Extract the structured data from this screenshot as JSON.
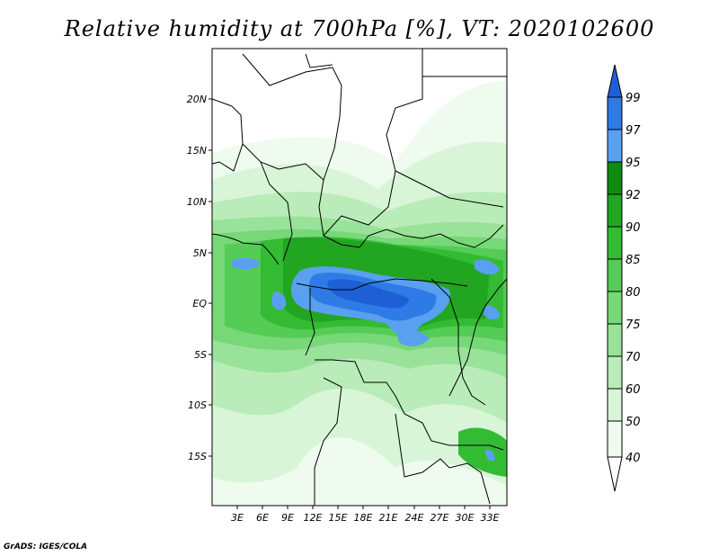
{
  "title": "Relative humidity at 700hPa [%], VT: 2020102600",
  "credit": "GrADS: IGES/COLA",
  "map": {
    "lat_ticks": [
      "20N",
      "15N",
      "10N",
      "5N",
      "EQ",
      "5S",
      "10S",
      "15S"
    ],
    "lon_ticks": [
      "3E",
      "6E",
      "9E",
      "12E",
      "15E",
      "18E",
      "21E",
      "24E",
      "27E",
      "30E",
      "33E"
    ]
  },
  "colorbar": {
    "levels": [
      "99",
      "97",
      "95",
      "92",
      "90",
      "85",
      "80",
      "75",
      "70",
      "60",
      "50",
      "40"
    ],
    "colors": [
      "#1e5fd6",
      "#2f7be6",
      "#5aa0f0",
      "#0f8c0f",
      "#22a622",
      "#33bb33",
      "#55cc55",
      "#77d877",
      "#99e299",
      "#b9ecb9",
      "#d8f5d8",
      "#eefbee",
      "#ffffff"
    ]
  }
}
